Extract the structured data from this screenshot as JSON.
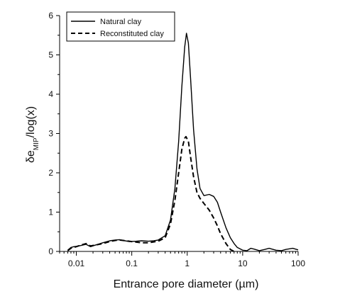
{
  "chart_data": {
    "type": "line",
    "xscale": "log",
    "xlim": [
      0.005,
      100
    ],
    "ylim": [
      0,
      6
    ],
    "x_ticks": [
      {
        "value": 0.01,
        "label": "0.01"
      },
      {
        "value": 0.1,
        "label": "0.1"
      },
      {
        "value": 1,
        "label": "1"
      },
      {
        "value": 10,
        "label": "10"
      },
      {
        "value": 100,
        "label": "100"
      }
    ],
    "y_ticks": [
      {
        "value": 0,
        "label": "0"
      },
      {
        "value": 1,
        "label": "1"
      },
      {
        "value": 2,
        "label": "2"
      },
      {
        "value": 3,
        "label": "3"
      },
      {
        "value": 4,
        "label": "4"
      },
      {
        "value": 5,
        "label": "5"
      },
      {
        "value": 6,
        "label": "6"
      }
    ],
    "xlabel_parts": {
      "pre": "Entrance pore diameter (",
      "mu": "µ",
      "post": "m)"
    },
    "ylabel_parts": {
      "delta": "δ",
      "e": "e",
      "sub": "MIP",
      "post": "/log(x)"
    },
    "legend_position": "top-left",
    "grid": false,
    "series": [
      {
        "name": "Natural clay",
        "style": "solid",
        "color": "#000000",
        "points": [
          [
            0.007,
            0.03
          ],
          [
            0.008,
            0.1
          ],
          [
            0.009,
            0.12
          ],
          [
            0.01,
            0.13
          ],
          [
            0.012,
            0.15
          ],
          [
            0.015,
            0.18
          ],
          [
            0.018,
            0.12
          ],
          [
            0.022,
            0.16
          ],
          [
            0.03,
            0.22
          ],
          [
            0.04,
            0.27
          ],
          [
            0.05,
            0.29
          ],
          [
            0.06,
            0.3
          ],
          [
            0.07,
            0.28
          ],
          [
            0.09,
            0.25
          ],
          [
            0.12,
            0.26
          ],
          [
            0.15,
            0.27
          ],
          [
            0.2,
            0.26
          ],
          [
            0.25,
            0.27
          ],
          [
            0.3,
            0.29
          ],
          [
            0.4,
            0.4
          ],
          [
            0.5,
            0.8
          ],
          [
            0.6,
            1.6
          ],
          [
            0.7,
            2.8
          ],
          [
            0.8,
            4.2
          ],
          [
            0.9,
            5.2
          ],
          [
            0.97,
            5.55
          ],
          [
            1.05,
            5.3
          ],
          [
            1.15,
            4.4
          ],
          [
            1.3,
            3.1
          ],
          [
            1.5,
            2.1
          ],
          [
            1.7,
            1.6
          ],
          [
            2.0,
            1.42
          ],
          [
            2.5,
            1.45
          ],
          [
            3.0,
            1.4
          ],
          [
            3.5,
            1.25
          ],
          [
            4.0,
            1.0
          ],
          [
            5.0,
            0.6
          ],
          [
            6.0,
            0.35
          ],
          [
            7.0,
            0.2
          ],
          [
            8.0,
            0.1
          ],
          [
            10.0,
            0.03
          ],
          [
            12.0,
            0.02
          ],
          [
            14.0,
            0.08
          ],
          [
            16.0,
            0.06
          ],
          [
            20.0,
            0.02
          ],
          [
            25.0,
            0.05
          ],
          [
            30.0,
            0.08
          ],
          [
            40.0,
            0.03
          ],
          [
            50.0,
            0.02
          ],
          [
            60.0,
            0.05
          ],
          [
            80.0,
            0.08
          ],
          [
            100.0,
            0.04
          ]
        ]
      },
      {
        "name": "Reconstituted clay",
        "style": "dashed",
        "color": "#000000",
        "points": [
          [
            0.007,
            0.02
          ],
          [
            0.008,
            0.08
          ],
          [
            0.01,
            0.12
          ],
          [
            0.012,
            0.16
          ],
          [
            0.015,
            0.2
          ],
          [
            0.018,
            0.14
          ],
          [
            0.022,
            0.16
          ],
          [
            0.03,
            0.2
          ],
          [
            0.04,
            0.25
          ],
          [
            0.05,
            0.28
          ],
          [
            0.06,
            0.29
          ],
          [
            0.08,
            0.27
          ],
          [
            0.1,
            0.25
          ],
          [
            0.15,
            0.22
          ],
          [
            0.2,
            0.22
          ],
          [
            0.3,
            0.26
          ],
          [
            0.4,
            0.35
          ],
          [
            0.5,
            0.7
          ],
          [
            0.6,
            1.3
          ],
          [
            0.7,
            2.0
          ],
          [
            0.8,
            2.6
          ],
          [
            0.9,
            2.88
          ],
          [
            0.95,
            2.92
          ],
          [
            1.05,
            2.8
          ],
          [
            1.15,
            2.4
          ],
          [
            1.3,
            1.9
          ],
          [
            1.5,
            1.5
          ],
          [
            1.7,
            1.35
          ],
          [
            2.0,
            1.22
          ],
          [
            2.5,
            1.05
          ],
          [
            3.0,
            0.85
          ],
          [
            3.5,
            0.65
          ],
          [
            4.0,
            0.45
          ],
          [
            5.0,
            0.2
          ],
          [
            6.0,
            0.05
          ],
          [
            7.0,
            0.0
          ]
        ]
      }
    ]
  }
}
